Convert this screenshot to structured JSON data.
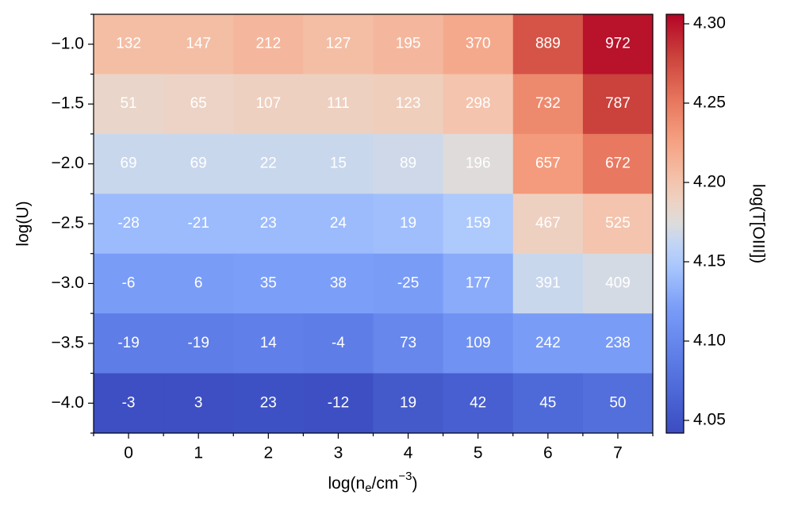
{
  "chart_data": {
    "type": "heatmap",
    "xlabel": [
      "log(n",
      "e",
      "/cm",
      "−3",
      ")"
    ],
    "ylabel": "log(U)",
    "colorbar_label": "log(T[OIII])",
    "colormap": "coolwarm",
    "x": [
      0,
      1,
      2,
      3,
      4,
      5,
      6,
      7
    ],
    "y": [
      "−1.0",
      "−1.5",
      "−2.0",
      "−2.5",
      "−3.0",
      "−3.5",
      "−4.0"
    ],
    "values": [
      [
        4.205,
        4.205,
        4.21,
        4.205,
        4.21,
        4.22,
        4.27,
        4.3
      ],
      [
        4.185,
        4.187,
        4.19,
        4.19,
        4.192,
        4.2,
        4.24,
        4.28
      ],
      [
        4.165,
        4.165,
        4.165,
        4.165,
        4.167,
        4.175,
        4.23,
        4.25
      ],
      [
        4.14,
        4.14,
        4.14,
        4.14,
        4.142,
        4.15,
        4.19,
        4.2
      ],
      [
        4.12,
        4.12,
        4.122,
        4.122,
        4.12,
        4.13,
        4.165,
        4.17
      ],
      [
        4.09,
        4.09,
        4.092,
        4.09,
        4.1,
        4.11,
        4.12,
        4.12
      ],
      [
        4.045,
        4.045,
        4.047,
        4.045,
        4.055,
        4.06,
        4.07,
        4.075
      ]
    ],
    "annotations": [
      [
        132,
        147,
        212,
        127,
        195,
        370,
        889,
        972
      ],
      [
        51,
        65,
        107,
        111,
        123,
        298,
        732,
        787
      ],
      [
        69,
        69,
        22,
        15,
        89,
        196,
        657,
        672
      ],
      [
        -28,
        -21,
        23,
        24,
        19,
        159,
        467,
        525
      ],
      [
        -6,
        6,
        35,
        38,
        -25,
        177,
        391,
        409
      ],
      [
        -19,
        -19,
        14,
        -4,
        73,
        109,
        242,
        238
      ],
      [
        -3,
        3,
        23,
        -12,
        19,
        42,
        45,
        50
      ]
    ],
    "clim": [
      4.042,
      4.306
    ],
    "cticks": [
      4.05,
      {
        "value": 4.1,
        "label": "4.10"
      },
      4.15,
      {
        "value": 4.2,
        "label": "4.20"
      },
      4.25,
      {
        "value": 4.3,
        "label": "4.30"
      }
    ]
  }
}
